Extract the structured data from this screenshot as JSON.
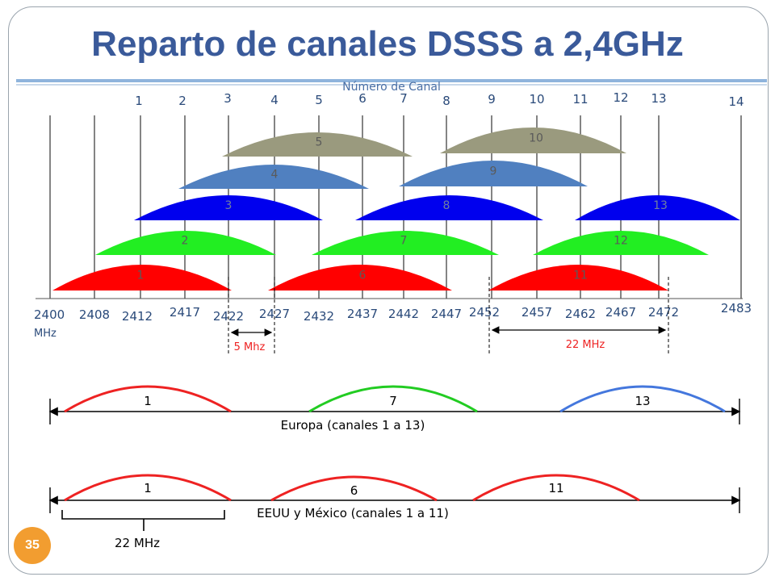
{
  "title": "Reparto de canales DSSS a 2,4GHz",
  "axis_title": "Número de Canal",
  "channel_numbers": [
    "1",
    "2",
    "3",
    "4",
    "5",
    "6",
    "7",
    "8",
    "9",
    "10",
    "11",
    "12",
    "13",
    "14"
  ],
  "frequencies": [
    "2400",
    "2408",
    "2412",
    "2417",
    "2422",
    "2427",
    "2432",
    "2437",
    "2442",
    "2447",
    "2452",
    "2457",
    "2462",
    "2467",
    "2472",
    "2483"
  ],
  "frequency_unit": "MHz",
  "spacing_label": "5 Mhz",
  "width_label": "22 MHz",
  "channel_lobes": [
    {
      "label": "1",
      "color": "#ff0000"
    },
    {
      "label": "2",
      "color": "#22ee22"
    },
    {
      "label": "3",
      "color": "#0000ee"
    },
    {
      "label": "4",
      "color": "#5080c0"
    },
    {
      "label": "5",
      "color": "#9a9a7e"
    },
    {
      "label": "6",
      "color": "#ff0000"
    },
    {
      "label": "7",
      "color": "#22ee22"
    },
    {
      "label": "8",
      "color": "#0000ee"
    },
    {
      "label": "9",
      "color": "#5080c0"
    },
    {
      "label": "10",
      "color": "#9a9a7e"
    },
    {
      "label": "11",
      "color": "#ff0000"
    },
    {
      "label": "12",
      "color": "#22ee22"
    },
    {
      "label": "13",
      "color": "#0000ee"
    }
  ],
  "europe": {
    "caption": "Europa (canales 1 a 13)",
    "channels": [
      {
        "label": "1",
        "color": "#ee2222"
      },
      {
        "label": "7",
        "color": "#22cc22"
      },
      {
        "label": "13",
        "color": "#4477dd"
      }
    ]
  },
  "usa": {
    "caption": "EEUU y México (canales 1 a 11)",
    "channels": [
      {
        "label": "1",
        "color": "#ee2222"
      },
      {
        "label": "6",
        "color": "#ee2222"
      },
      {
        "label": "11",
        "color": "#ee2222"
      }
    ],
    "bracket_label": "22 MHz"
  },
  "slide_number": "35"
}
